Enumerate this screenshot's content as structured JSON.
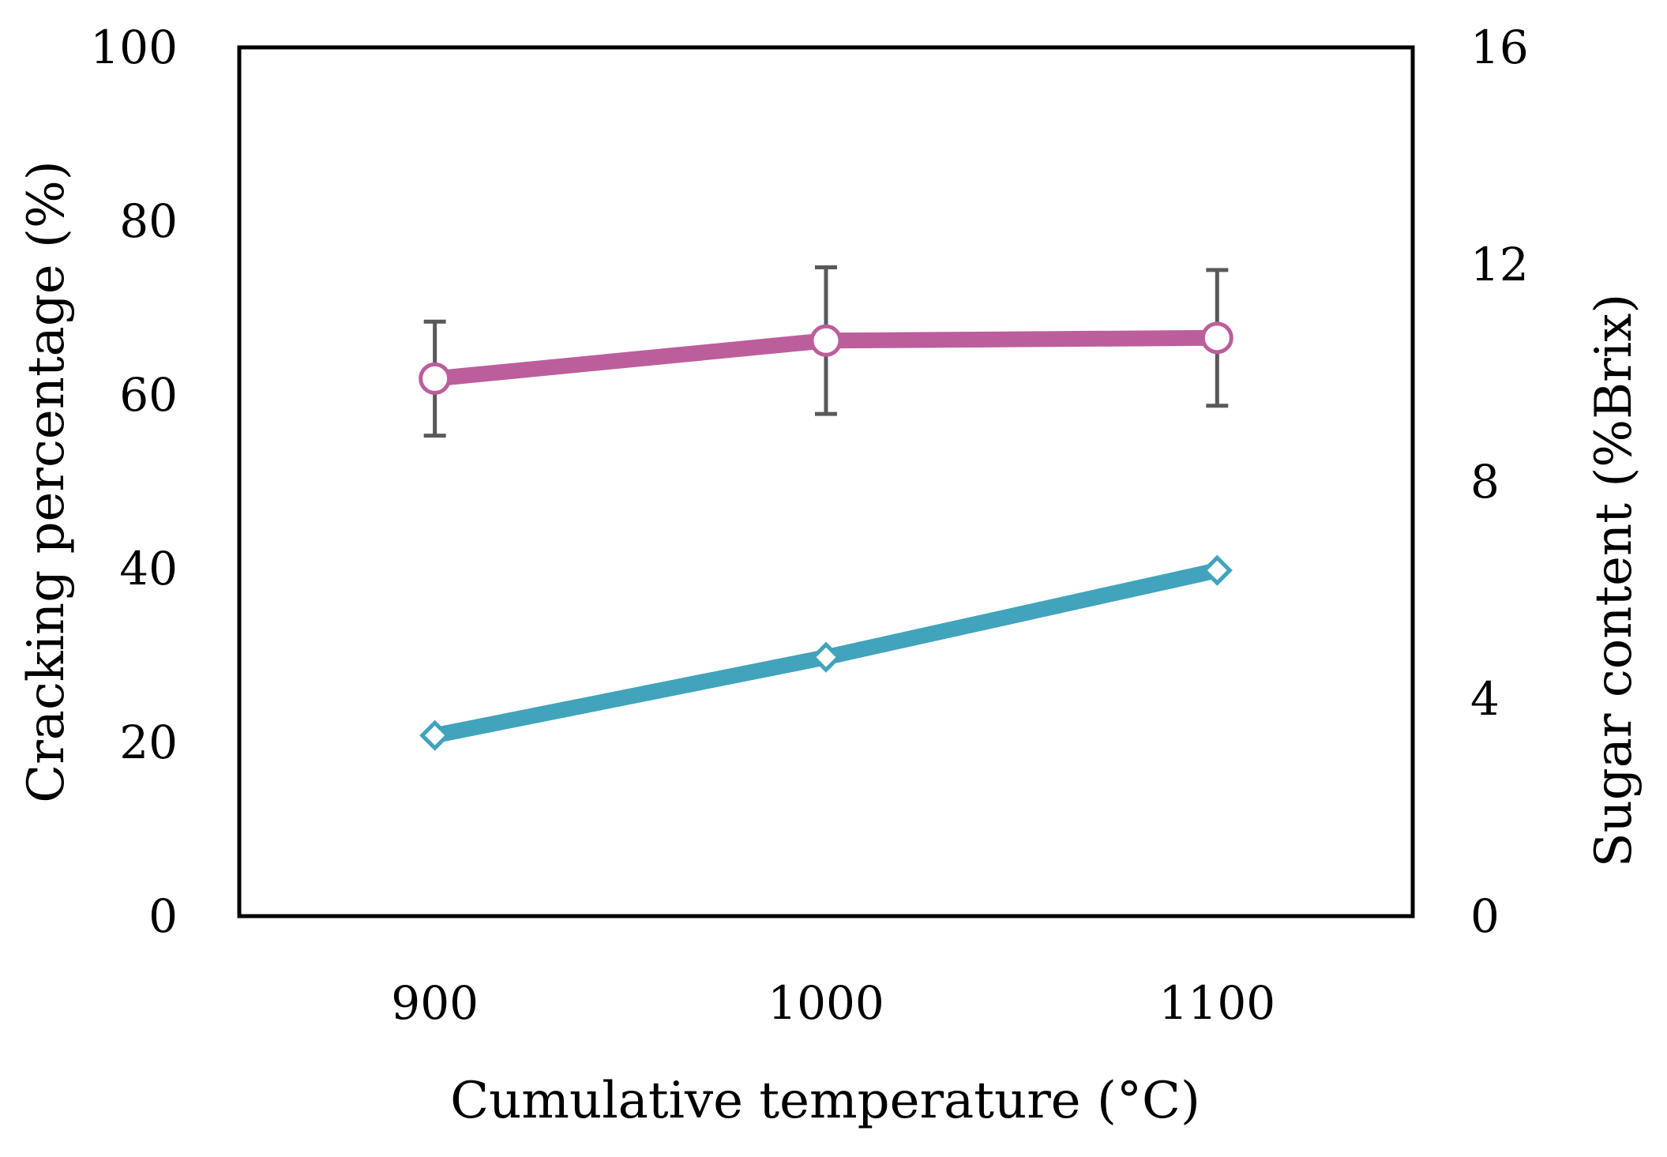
{
  "chart_data": {
    "type": "line",
    "title": "",
    "xlabel": "Cumulative temperature (°C)",
    "ylabel_left": "Cracking percentage (%)",
    "ylabel_right": "Sugar content (%Brix)",
    "x_categories": [
      "900",
      "1000",
      "1100"
    ],
    "x_tick_labels": [
      "900",
      "1000",
      "1100"
    ],
    "xlim": [
      850,
      1150
    ],
    "ylim_left": [
      0,
      100
    ],
    "ylim_right": [
      0,
      16
    ],
    "yticks_left": [
      "0",
      "20",
      "40",
      "60",
      "80",
      "100"
    ],
    "yticks_right": [
      "0",
      "4",
      "8",
      "12",
      "16"
    ],
    "grid": false,
    "series": [
      {
        "name": "Cracking percentage",
        "axis": "left",
        "marker": "diamond",
        "color": "#42A3BC",
        "x": [
          900,
          1000,
          1100
        ],
        "values": [
          20.8,
          29.8,
          39.8
        ]
      },
      {
        "name": "Sugar content",
        "axis": "right",
        "marker": "circle",
        "color": "#BC5E9C",
        "x": [
          900,
          1000,
          1100
        ],
        "values": [
          9.9,
          10.6,
          10.65
        ],
        "error": [
          1.05,
          1.35,
          1.25
        ],
        "error_color": "#595959"
      }
    ]
  }
}
